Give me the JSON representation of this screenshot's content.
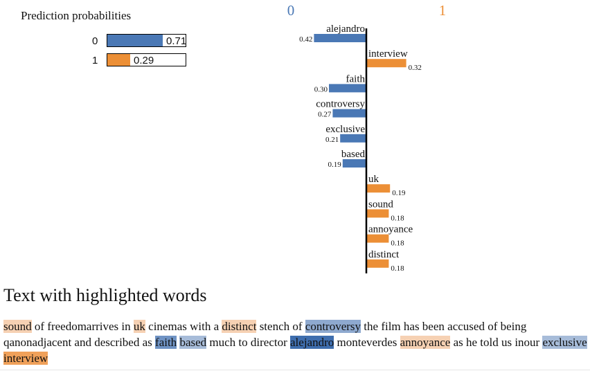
{
  "prediction": {
    "title": "Prediction probabilities",
    "classes": [
      {
        "label": "0",
        "prob_text": "0.71",
        "prob": 0.71,
        "color": "#4a78b5"
      },
      {
        "label": "1",
        "prob_text": "0.29",
        "prob": 0.29,
        "color": "#ec8f36"
      }
    ]
  },
  "chart_data": {
    "type": "bar",
    "class_labels": [
      "0",
      "1"
    ],
    "class_colors": [
      "#4a78b5",
      "#ec8f36"
    ],
    "features": [
      {
        "word": "alejandro",
        "weight": 0.42,
        "label": "0.42",
        "class": "0"
      },
      {
        "word": "interview",
        "weight": 0.32,
        "label": "0.32",
        "class": "1"
      },
      {
        "word": "faith",
        "weight": 0.3,
        "label": "0.30",
        "class": "0"
      },
      {
        "word": "controversy",
        "weight": 0.27,
        "label": "0.27",
        "class": "0"
      },
      {
        "word": "exclusive",
        "weight": 0.21,
        "label": "0.21",
        "class": "0"
      },
      {
        "word": "based",
        "weight": 0.19,
        "label": "0.19",
        "class": "0"
      },
      {
        "word": "uk",
        "weight": 0.19,
        "label": "0.19",
        "class": "1"
      },
      {
        "word": "sound",
        "weight": 0.18,
        "label": "0.18",
        "class": "1"
      },
      {
        "word": "annoyance",
        "weight": 0.18,
        "label": "0.18",
        "class": "1"
      },
      {
        "word": "distinct",
        "weight": 0.18,
        "label": "0.18",
        "class": "1"
      }
    ]
  },
  "text_section": {
    "title": "Text with highlighted words",
    "segments": [
      {
        "t": "sound",
        "hl": "#f6d1b3"
      },
      {
        "t": " of freedomarrives in "
      },
      {
        "t": "uk",
        "hl": "#f6d1b3"
      },
      {
        "t": " cinemas with a "
      },
      {
        "t": "distinct",
        "hl": "#f6d1b3"
      },
      {
        "t": " stench of "
      },
      {
        "t": "controversy",
        "hl": "#8ea9cf"
      },
      {
        "t": " the film has been accused of being qanonadjacent and described as "
      },
      {
        "t": "faith",
        "hl": "#6f93c4"
      },
      {
        "t": " "
      },
      {
        "t": "based",
        "hl": "#a7bcd9"
      },
      {
        "t": "  much to director "
      },
      {
        "t": "alejandro",
        "hl": "#3f6eae"
      },
      {
        "t": " monteverdes "
      },
      {
        "t": "annoyance",
        "hl": "#f6d1b3"
      },
      {
        "t": " as he told us inour "
      },
      {
        "t": "exclusive",
        "hl": "#a7bcd9"
      },
      {
        "t": " "
      },
      {
        "t": "interview",
        "hl": "#f0a15a"
      }
    ]
  }
}
